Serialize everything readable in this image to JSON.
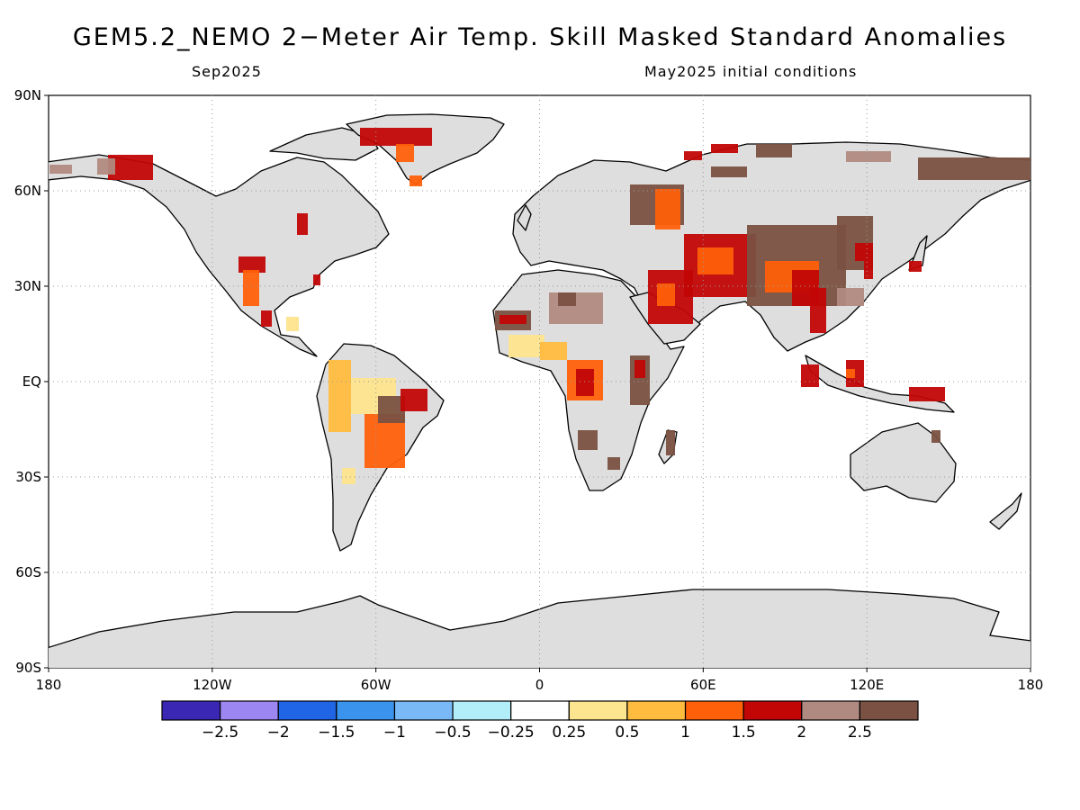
{
  "title": "GEM5.2_NEMO 2−Meter Air Temp. Skill Masked Standard Anomalies",
  "subtitle_left": "Sep2025",
  "subtitle_right": "May2025 initial conditions",
  "lat_ticks": [
    "90N",
    "60N",
    "30N",
    "EQ",
    "30S",
    "60S",
    "90S"
  ],
  "lon_ticks": [
    "180",
    "120W",
    "60W",
    "0",
    "60E",
    "120E",
    "180"
  ],
  "colorbar": {
    "colors": [
      "#3a28b4",
      "#9b86f2",
      "#1f65e6",
      "#3a94ee",
      "#78b9f6",
      "#b2eef9",
      "#ffffff",
      "#fde48e",
      "#ffbc3e",
      "#fe6009",
      "#c20606",
      "#b08a80",
      "#7a5142"
    ],
    "labels": [
      "−2.5",
      "−2",
      "−1.5",
      "−1",
      "−0.5",
      "−0.25",
      "0.25",
      "0.5",
      "1",
      "1.5",
      "2",
      "2.5"
    ]
  },
  "land_color": "#dedede"
}
